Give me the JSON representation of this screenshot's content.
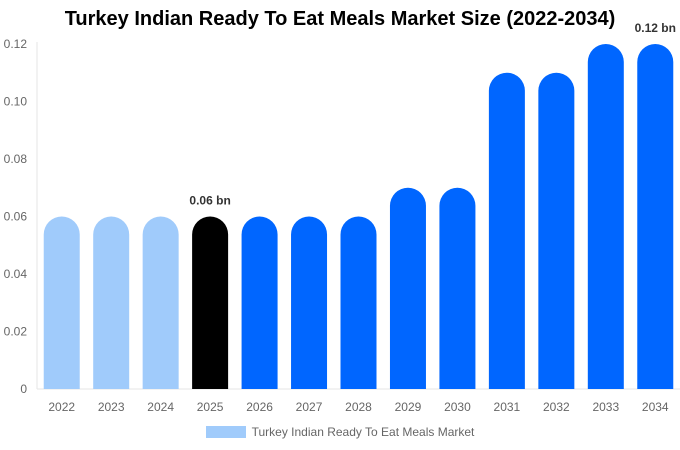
{
  "chart_data": {
    "type": "bar",
    "title": "Turkey Indian Ready To Eat Meals Market Size (2022-2034)",
    "categories": [
      "2022",
      "2023",
      "2024",
      "2025",
      "2026",
      "2027",
      "2028",
      "2029",
      "2030",
      "2031",
      "2032",
      "2033",
      "2034"
    ],
    "series": [
      {
        "name": "Turkey Indian Ready To Eat Meals Market",
        "values": [
          0.06,
          0.06,
          0.06,
          0.06,
          0.06,
          0.06,
          0.06,
          0.07,
          0.07,
          0.11,
          0.11,
          0.12,
          0.12
        ]
      }
    ],
    "bar_colors": [
      "#a0cbfb",
      "#a0cbfb",
      "#a0cbfb",
      "#000000",
      "#0066ff",
      "#0066ff",
      "#0066ff",
      "#0066ff",
      "#0066ff",
      "#0066ff",
      "#0066ff",
      "#0066ff",
      "#0066ff"
    ],
    "data_labels": [
      {
        "index": 3,
        "text": "0.06 bn"
      },
      {
        "index": 12,
        "text": "0.12 bn"
      }
    ],
    "ylim": [
      0,
      0.12
    ],
    "yticks": [
      "0",
      "0.02",
      "0.04",
      "0.06",
      "0.08",
      "0.10",
      "0.12"
    ],
    "grid": false,
    "legend": "bottom",
    "legend_color": "#a0cbfb"
  }
}
